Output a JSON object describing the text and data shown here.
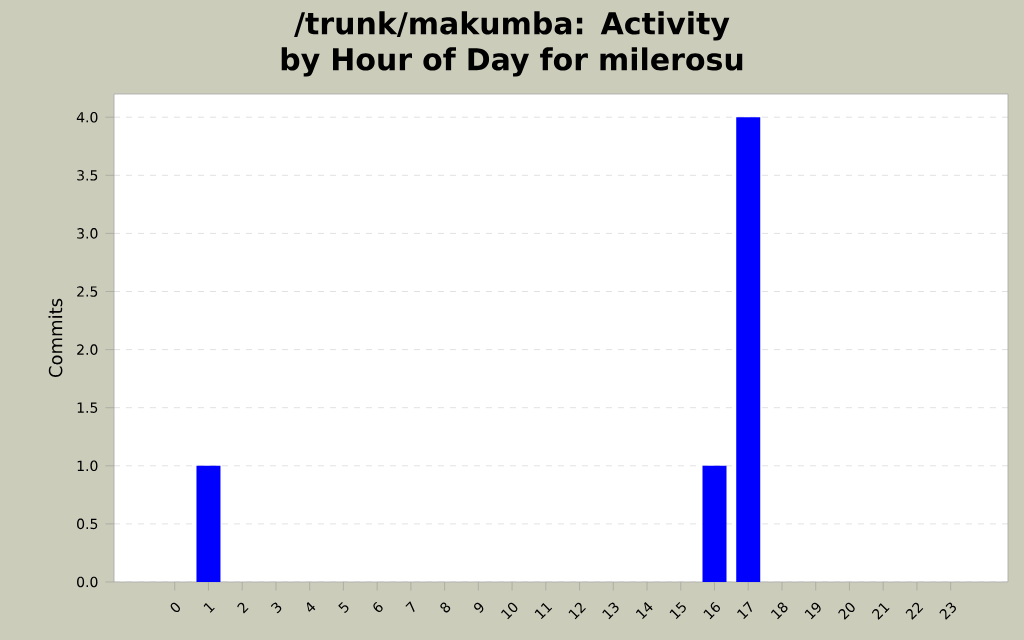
{
  "chart_data": {
    "type": "bar",
    "title": "/trunk/makumba: Activity by Hour of Day for milerosu",
    "ylabel": "Commits",
    "categories": [
      "0",
      "1",
      "2",
      "3",
      "4",
      "5",
      "6",
      "7",
      "8",
      "9",
      "10",
      "11",
      "12",
      "13",
      "14",
      "15",
      "16",
      "17",
      "18",
      "19",
      "20",
      "21",
      "22",
      "23"
    ],
    "values": [
      0,
      1,
      0,
      0,
      0,
      0,
      0,
      0,
      0,
      0,
      0,
      0,
      0,
      0,
      0,
      0,
      1,
      4,
      0,
      0,
      0,
      0,
      0,
      0
    ],
    "color": "#0000ff",
    "ylim": [
      0,
      4.2
    ],
    "yticks": [
      {
        "value": 0,
        "label": "0.0"
      },
      {
        "value": 0.5,
        "label": "0.5"
      },
      {
        "value": 1,
        "label": "1.0"
      },
      {
        "value": 1.5,
        "label": "1.5"
      },
      {
        "value": 2,
        "label": "2.0"
      },
      {
        "value": 2.5,
        "label": "2.5"
      },
      {
        "value": 3,
        "label": "3.0"
      },
      {
        "value": 3.5,
        "label": "3.5"
      },
      {
        "value": 4,
        "label": "4.0"
      }
    ],
    "grid": "y"
  }
}
